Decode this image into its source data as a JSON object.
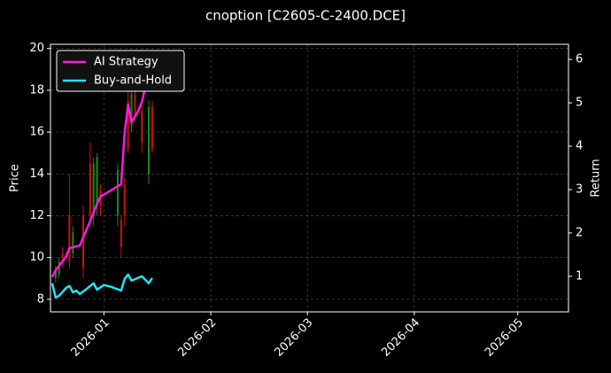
{
  "chart_data": {
    "type": "candlestick",
    "title": "cnoption [C2605-C-2400.DCE]",
    "y_label": "Price",
    "y2_label": "Return",
    "xlim": [
      -15.5,
      134.7
    ],
    "xticks": [
      {
        "value": 0,
        "label": "2026-01"
      },
      {
        "value": 31,
        "label": "2026-02"
      },
      {
        "value": 59,
        "label": "2026-03"
      },
      {
        "value": 90,
        "label": "2026-04"
      },
      {
        "value": 120,
        "label": "2026-05"
      }
    ],
    "ylim": [
      7.4,
      20.2
    ],
    "yticks": [
      8,
      10,
      12,
      14,
      16,
      18,
      20
    ],
    "y2lim": [
      0.18,
      6.35
    ],
    "y2ticks": [
      1,
      2,
      3,
      4,
      5,
      6
    ],
    "grid": true,
    "legend": "upper left",
    "up_color": "#1a8a1a",
    "down_color": "#d01010",
    "candles": {
      "x": [
        -14,
        -13,
        -12,
        -10,
        -9,
        -6,
        -4,
        -3,
        -2,
        -1,
        4,
        5,
        6,
        7,
        8,
        9,
        11,
        13,
        14
      ],
      "open": [
        9.0,
        9.2,
        10.2,
        12.0,
        10.2,
        12.0,
        14.5,
        12.0,
        12.5,
        13.2,
        12.0,
        11.8,
        13.5,
        17.5,
        16.3,
        17.8,
        17.0,
        14.0,
        17.2
      ],
      "close": [
        9.4,
        9.8,
        10.0,
        9.8,
        11.2,
        9.5,
        12.0,
        14.5,
        14.8,
        12.5,
        14.2,
        10.5,
        12.0,
        15.2,
        17.8,
        16.8,
        15.5,
        17.2,
        15.2
      ],
      "high": [
        9.6,
        10.0,
        10.5,
        14.0,
        11.5,
        12.5,
        15.5,
        14.8,
        15.0,
        13.5,
        14.5,
        12.0,
        13.8,
        18.0,
        18.0,
        18.0,
        17.5,
        17.5,
        17.5
      ],
      "low": [
        8.8,
        9.0,
        9.5,
        9.5,
        10.0,
        9.0,
        11.5,
        11.5,
        12.0,
        12.0,
        11.5,
        10.0,
        11.5,
        15.0,
        16.0,
        16.5,
        15.0,
        13.5,
        15.0
      ]
    },
    "series": [
      {
        "name": "AI Strategy",
        "color": "#ff1ae0",
        "axis": "y2",
        "x": [
          -15,
          -14,
          -13,
          -11,
          -10,
          -7,
          -6,
          -4,
          -2,
          -1,
          2,
          4,
          5,
          6,
          7,
          8,
          10,
          11,
          12
        ],
        "values": [
          0.98,
          1.14,
          1.24,
          1.45,
          1.65,
          1.71,
          1.9,
          2.27,
          2.67,
          2.84,
          2.98,
          3.08,
          3.12,
          4.31,
          4.96,
          4.55,
          4.82,
          5.02,
          5.37
        ]
      },
      {
        "name": "Buy-and-Hold",
        "color": "#22e5f0",
        "axis": "y2",
        "x": [
          -15,
          -14,
          -13,
          -11,
          -10,
          -9,
          -8,
          -7,
          -5,
          -3,
          -2,
          0,
          2,
          5,
          6,
          7,
          8,
          11,
          13,
          14
        ],
        "values": [
          0.84,
          0.51,
          0.55,
          0.73,
          0.78,
          0.63,
          0.67,
          0.59,
          0.71,
          0.84,
          0.69,
          0.8,
          0.76,
          0.67,
          0.94,
          1.04,
          0.9,
          1.0,
          0.84,
          0.96
        ]
      }
    ]
  }
}
